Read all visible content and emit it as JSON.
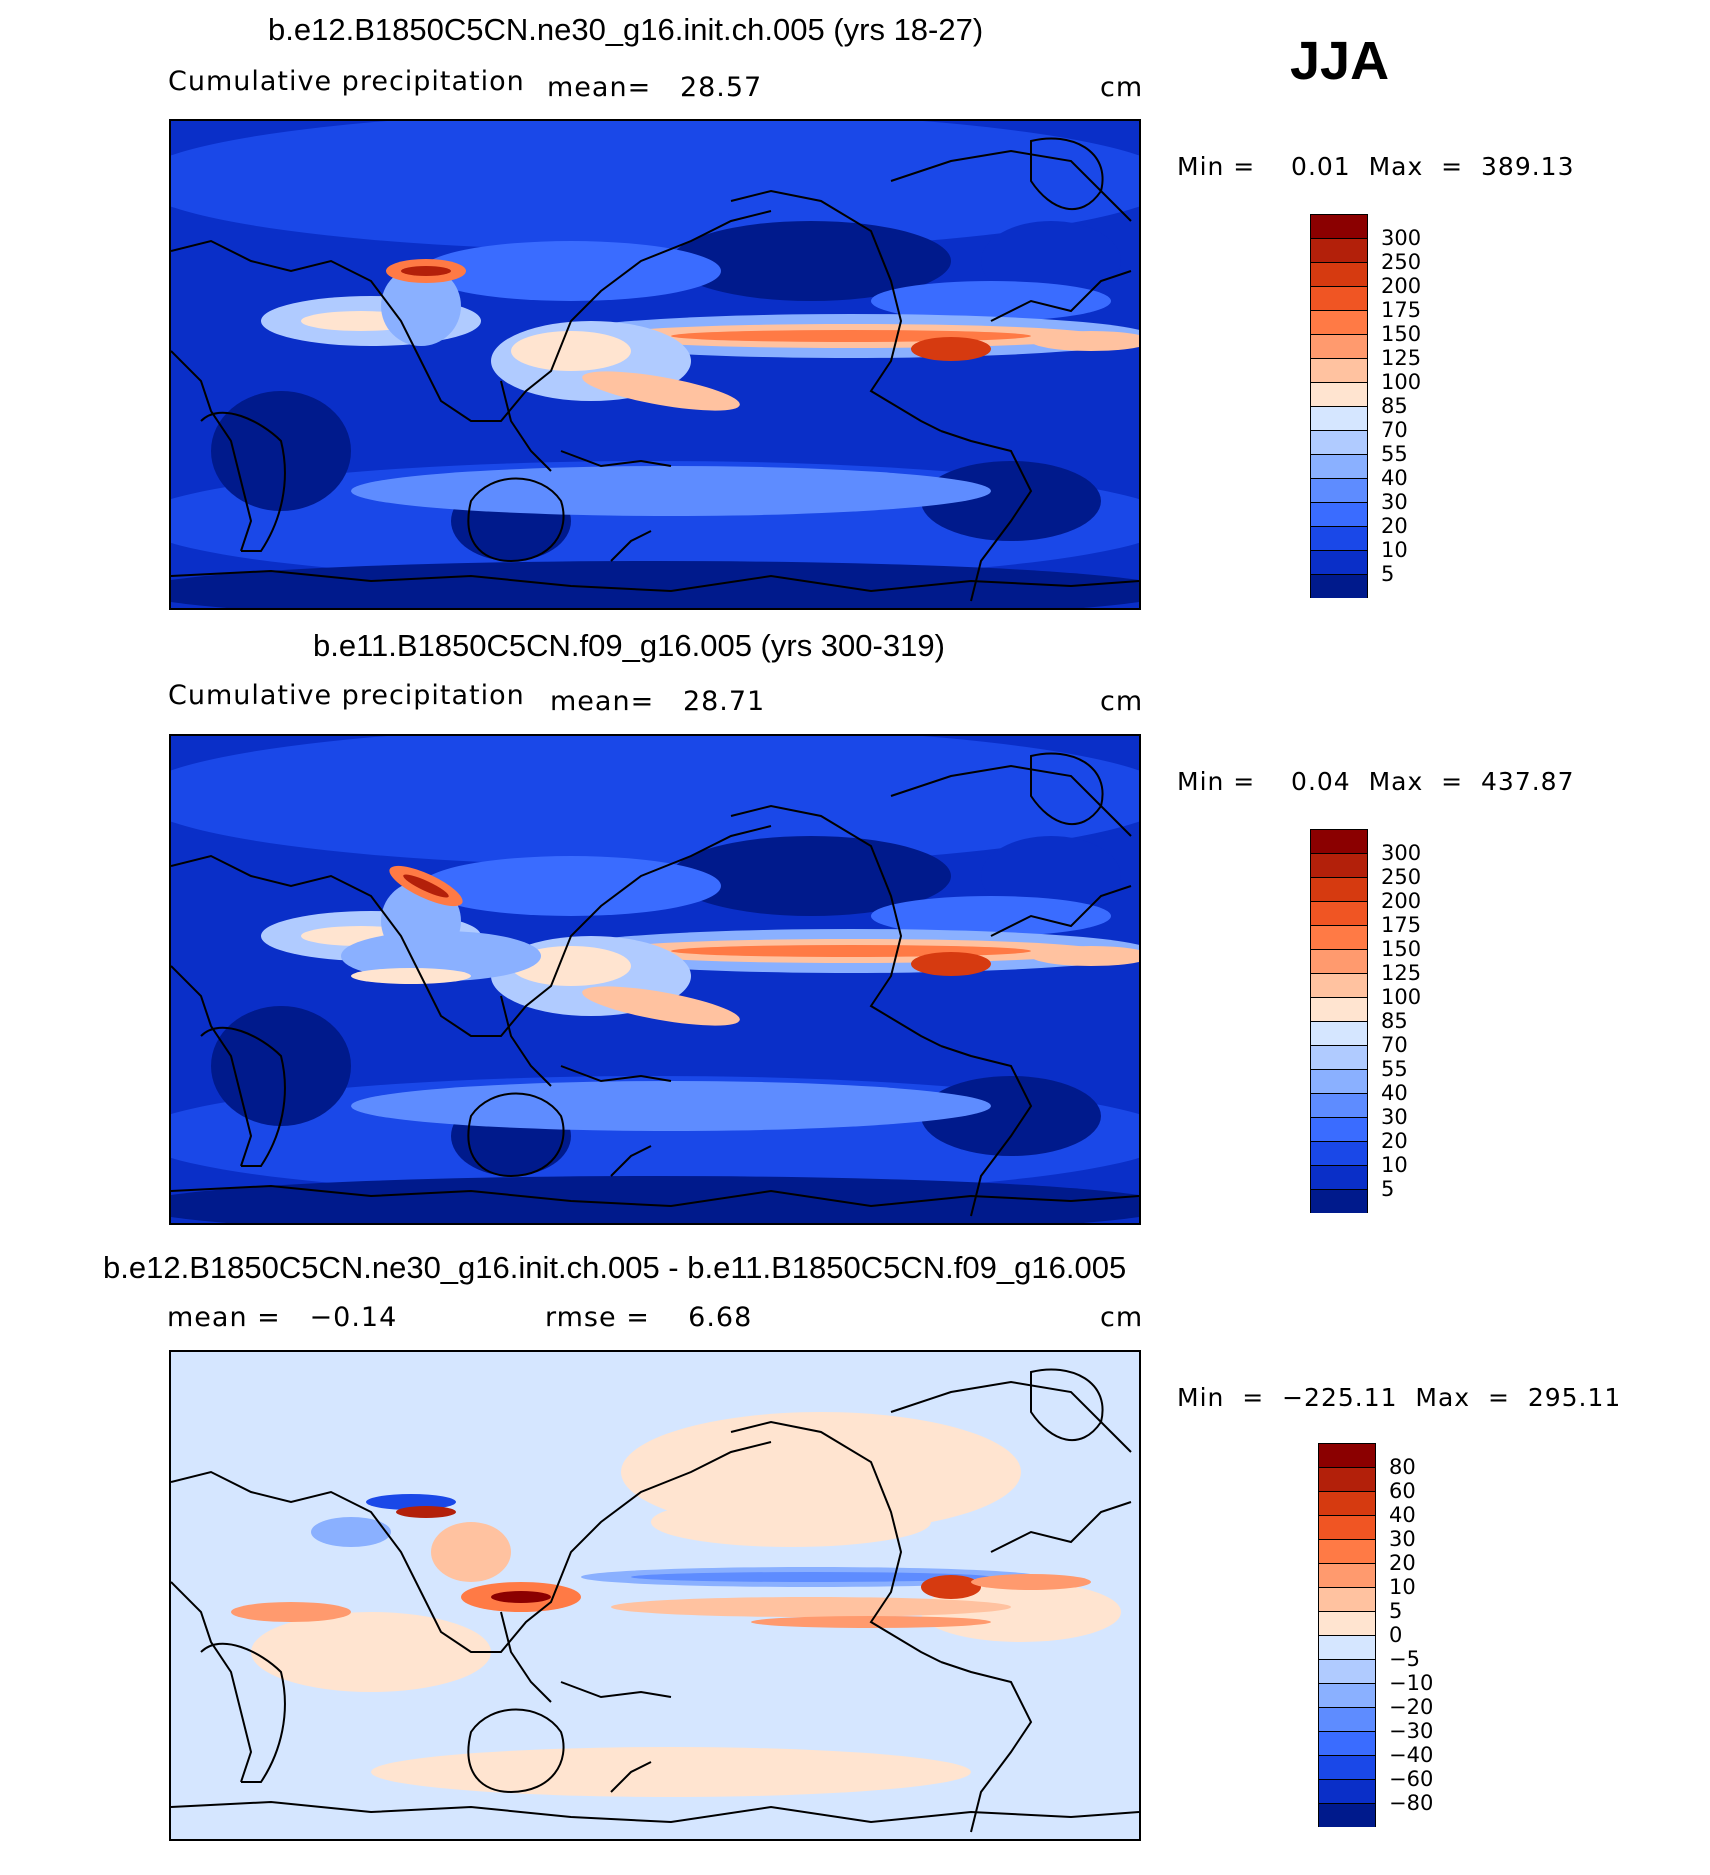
{
  "season": "JJA",
  "chart_data": [
    {
      "type": "heatmap",
      "title": "b.e12.B1850C5CN.ne30_g16.init.ch.005 (yrs 18-27)",
      "variable": "Cumulative precipitation",
      "stat1": "mean=   28.57",
      "units": "cm",
      "minmax": "Min =    0.01  Max  =  389.13",
      "colorbar_labels": [
        "300",
        "250",
        "200",
        "175",
        "150",
        "125",
        "100",
        "85",
        "70",
        "55",
        "40",
        "30",
        "20",
        "10",
        "5"
      ],
      "colorbar_colors": [
        "#8b0000",
        "#b3200a",
        "#d63a10",
        "#f05523",
        "#ff7a45",
        "#ff9a6e",
        "#ffc2a0",
        "#ffe4d0",
        "#d5e6ff",
        "#b0cbff",
        "#8ab0ff",
        "#5e8cff",
        "#3a6cff",
        "#1a48e8",
        "#0a2fc8",
        "#001a8c"
      ],
      "mean": 28.57,
      "min": 0.01,
      "max": 389.13
    },
    {
      "type": "heatmap",
      "title": "b.e11.B1850C5CN.f09_g16.005 (yrs 300-319)",
      "variable": "Cumulative precipitation",
      "stat1": "mean=   28.71",
      "units": "cm",
      "minmax": "Min =    0.04  Max  =  437.87",
      "colorbar_labels": [
        "300",
        "250",
        "200",
        "175",
        "150",
        "125",
        "100",
        "85",
        "70",
        "55",
        "40",
        "30",
        "20",
        "10",
        "5"
      ],
      "colorbar_colors": [
        "#8b0000",
        "#b3200a",
        "#d63a10",
        "#f05523",
        "#ff7a45",
        "#ff9a6e",
        "#ffc2a0",
        "#ffe4d0",
        "#d5e6ff",
        "#b0cbff",
        "#8ab0ff",
        "#5e8cff",
        "#3a6cff",
        "#1a48e8",
        "#0a2fc8",
        "#001a8c"
      ],
      "mean": 28.71,
      "min": 0.04,
      "max": 437.87
    },
    {
      "type": "heatmap",
      "title": "b.e12.B1850C5CN.ne30_g16.init.ch.005 - b.e11.B1850C5CN.f09_g16.005",
      "variable": "",
      "stat1": "mean =   −0.14",
      "stat2": "rmse =    6.68",
      "units": "cm",
      "minmax": "Min  =  −225.11  Max  =  295.11",
      "colorbar_labels": [
        "80",
        "60",
        "40",
        "30",
        "20",
        "10",
        "5",
        "0",
        "−5",
        "−10",
        "−20",
        "−30",
        "−40",
        "−60",
        "−80"
      ],
      "colorbar_colors": [
        "#8b0000",
        "#b3200a",
        "#d63a10",
        "#f05523",
        "#ff7a45",
        "#ff9a6e",
        "#ffc2a0",
        "#ffe4d0",
        "#d5e6ff",
        "#b0cbff",
        "#8ab0ff",
        "#5e8cff",
        "#3a6cff",
        "#1a48e8",
        "#0a2fc8",
        "#001a8c"
      ],
      "mean": -0.14,
      "rmse": 6.68,
      "min": -225.11,
      "max": 295.11
    }
  ]
}
